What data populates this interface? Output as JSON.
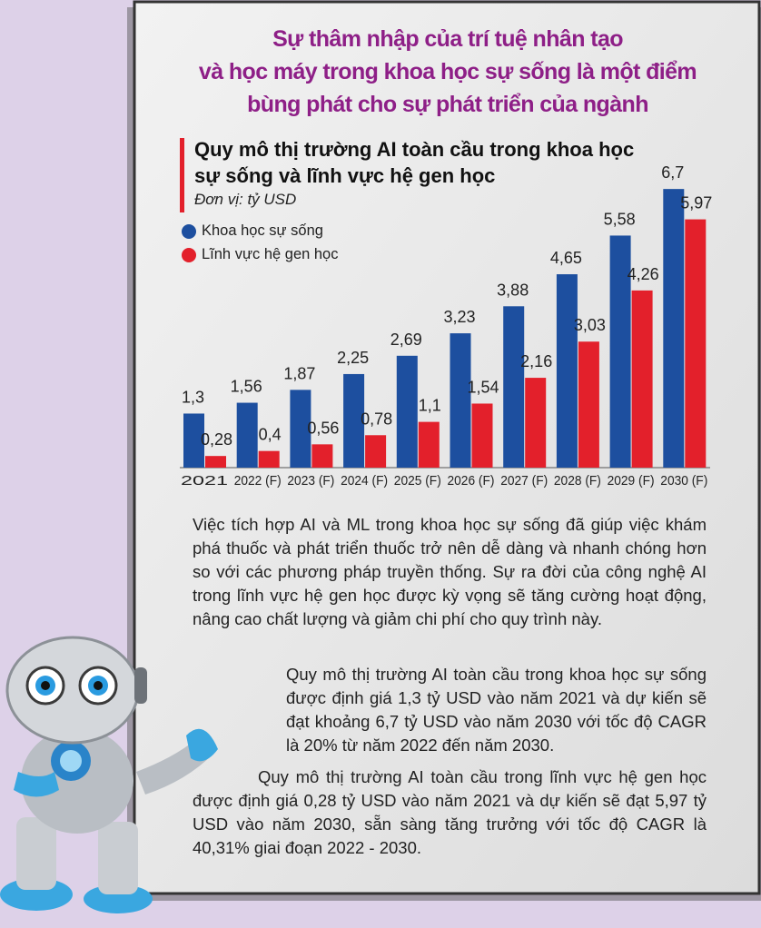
{
  "chart_data": {
    "type": "bar",
    "heading": [
      "Sự thâm nhập của trí tuệ nhân tạo",
      "và học máy trong khoa học sự sống là một điểm",
      "bùng phát  cho sự phát triển của ngành"
    ],
    "title": [
      "Quy mô thị trường AI toàn cầu trong khoa học",
      "sự sống và lĩnh vực hệ gen học"
    ],
    "subtitle": "Đơn vị: tỷ USD",
    "categories": [
      "2021",
      "2022 (F)",
      "2023 (F)",
      "2024 (F)",
      "2025 (F)",
      "2026 (F)",
      "2027 (F)",
      "2028 (F)",
      "2029 (F)",
      "2030 (F)"
    ],
    "series": [
      {
        "name": "Khoa học sự sống",
        "color": "#1d4f9f",
        "values": [
          1.3,
          1.56,
          1.87,
          2.25,
          2.69,
          3.23,
          3.88,
          4.65,
          5.58,
          6.7
        ],
        "value_labels": [
          "1,3",
          "1,56",
          "1,87",
          "2,25",
          "2,69",
          "3,23",
          "3,88",
          "4,65",
          "5,58",
          "6,7"
        ]
      },
      {
        "name": "Lĩnh vực hệ gen học",
        "color": "#e3202b",
        "values": [
          0.28,
          0.4,
          0.56,
          0.78,
          1.1,
          1.54,
          2.16,
          3.03,
          4.26,
          5.97
        ],
        "value_labels": [
          "0,28",
          "0,4",
          "0,56",
          "0,78",
          "1,1",
          "1,54",
          "2,16",
          "3,03",
          "4,26",
          "5,97"
        ]
      }
    ]
  },
  "paragraphs": [
    "Việc tích hợp AI và ML trong khoa học sự sống đã giúp việc khám phá thuốc và phát triển thuốc trở nên dễ dàng và nhanh chóng hơn so với các phương pháp truyền thống. Sự ra đời của công nghệ AI trong lĩnh vực hệ gen học được kỳ vọng sẽ tăng cường hoạt động, nâng cao chất lượng và giảm chi phí cho quy trình này.",
    "Quy mô thị trường AI toàn cầu trong khoa học sự sống được định giá 1,3 tỷ USD vào năm 2021 và dự kiến sẽ đạt khoảng 6,7 tỷ USD vào năm 2030 với tốc độ CAGR là 20% từ năm 2022 đến năm 2030.",
    "Quy mô thị trường AI toàn cầu trong lĩnh vực hệ gen học được định giá 0,28 tỷ USD vào năm 2021 và dự kiến sẽ đạt 5,97 tỷ USD vào năm 2030, sẵn sàng tăng trưởng với tốc độ CAGR là 40,31% giai đoạn 2022 - 2030."
  ]
}
